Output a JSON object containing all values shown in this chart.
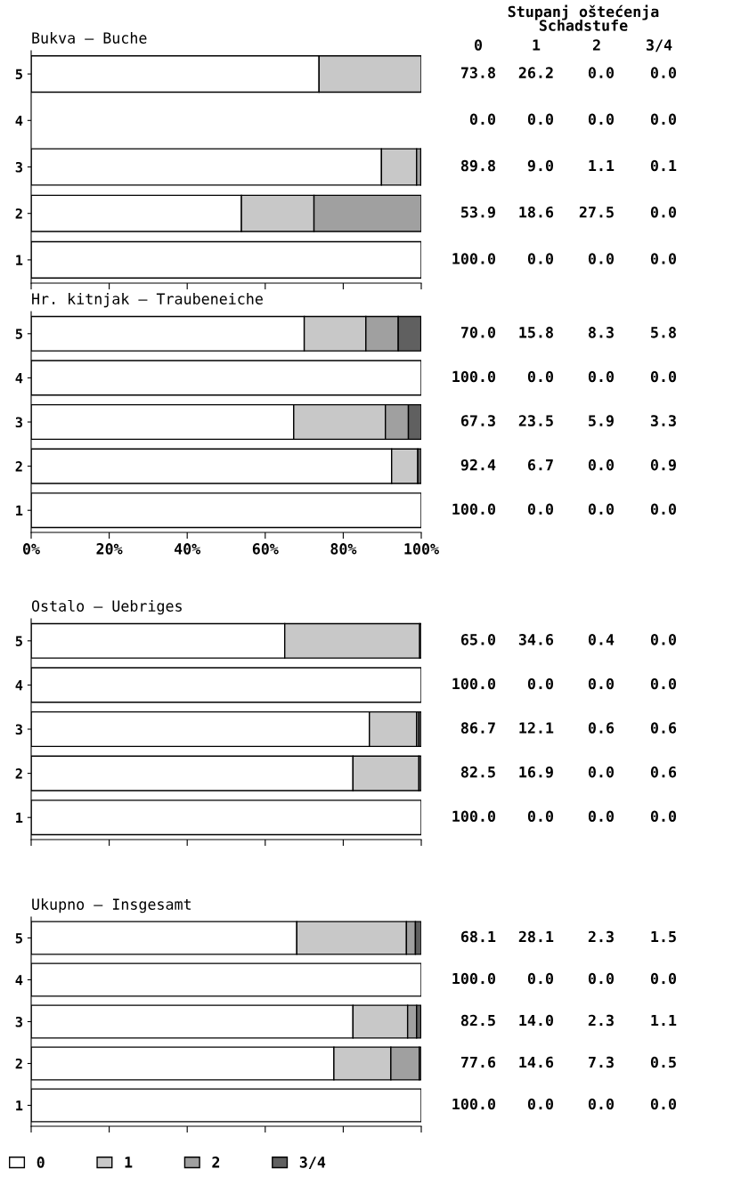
{
  "chart_data": [
    {
      "type": "bar",
      "orientation": "horizontal",
      "stacked": true,
      "title": "Bukva – Buche",
      "annotations": [
        "Stupanj oštećenja",
        "Schadstufe",
        "0",
        "1",
        "2",
        "3/4"
      ],
      "categories": [
        "5",
        "4",
        "3",
        "2",
        "1"
      ],
      "xlim": [
        0,
        100
      ],
      "xticks": [
        {
          "value": 0,
          "label": null
        },
        {
          "value": 20,
          "label": null
        },
        {
          "value": 40,
          "label": null
        },
        {
          "value": 60,
          "label": null
        },
        {
          "value": 80,
          "label": null
        },
        {
          "value": 100,
          "label": null
        }
      ],
      "tick_labels": "y",
      "series": [
        {
          "color": "#ffffff",
          "values": [
            73.8,
            0.0,
            89.8,
            53.9,
            100.0
          ],
          "value_labels": [
            "73.8",
            "0.0",
            "89.8",
            "53.9",
            "100.0"
          ]
        },
        {
          "color": "#c8c8c8",
          "values": [
            26.2,
            0.0,
            9.0,
            18.6,
            0.0
          ],
          "value_labels": [
            "26.2",
            "0.0",
            "9.0",
            "18.6",
            "0.0"
          ]
        },
        {
          "color": "#a0a0a0",
          "values": [
            0.0,
            0.0,
            1.1,
            27.5,
            0.0
          ],
          "value_labels": [
            "0.0",
            "0.0",
            "1.1",
            "27.5",
            "0.0"
          ]
        },
        {
          "color": "#606060",
          "values": [
            0.0,
            0.0,
            0.1,
            0.0,
            0.0
          ],
          "value_labels": [
            "0.0",
            "0.0",
            "0.1",
            "0.0",
            "0.0"
          ]
        }
      ]
    },
    {
      "type": "bar",
      "orientation": "horizontal",
      "stacked": true,
      "title": "Hr. kitnjak – Traubeneiche",
      "categories": [
        "5",
        "4",
        "3",
        "2",
        "1"
      ],
      "xlim": [
        0,
        100
      ],
      "xticks": [
        {
          "value": 0,
          "label": "0%"
        },
        {
          "value": 20,
          "label": "20%"
        },
        {
          "value": 40,
          "label": "40%"
        },
        {
          "value": 60,
          "label": "60%"
        },
        {
          "value": 80,
          "label": "80%"
        },
        {
          "value": 100,
          "label": "100%"
        }
      ],
      "series": [
        {
          "color": "#ffffff",
          "values": [
            70.0,
            100.0,
            67.3,
            92.4,
            100.0
          ],
          "value_labels": [
            "70.0",
            "100.0",
            "67.3",
            "92.4",
            "100.0"
          ]
        },
        {
          "color": "#c8c8c8",
          "values": [
            15.8,
            0.0,
            23.5,
            6.7,
            0.0
          ],
          "value_labels": [
            "15.8",
            "0.0",
            "23.5",
            "6.7",
            "0.0"
          ]
        },
        {
          "color": "#a0a0a0",
          "values": [
            8.3,
            0.0,
            5.9,
            0.0,
            0.0
          ],
          "value_labels": [
            "8.3",
            "0.0",
            "5.9",
            "0.0",
            "0.0"
          ]
        },
        {
          "color": "#606060",
          "values": [
            5.8,
            0.0,
            3.3,
            0.9,
            0.0
          ],
          "value_labels": [
            "5.8",
            "0.0",
            "3.3",
            "0.9",
            "0.0"
          ]
        }
      ]
    },
    {
      "type": "bar",
      "orientation": "horizontal",
      "stacked": true,
      "title": "Ostalo – Uebriges",
      "categories": [
        "5",
        "4",
        "3",
        "2",
        "1"
      ],
      "xlim": [
        0,
        100
      ],
      "xticks": [
        {
          "value": 0,
          "label": null
        },
        {
          "value": 20,
          "label": null
        },
        {
          "value": 40,
          "label": null
        },
        {
          "value": 60,
          "label": null
        },
        {
          "value": 80,
          "label": null
        },
        {
          "value": 100,
          "label": null
        }
      ],
      "tick_labels": "y",
      "series": [
        {
          "color": "#ffffff",
          "values": [
            65.0,
            100.0,
            86.7,
            82.5,
            100.0
          ],
          "value_labels": [
            "65.0",
            "100.0",
            "86.7",
            "82.5",
            "100.0"
          ]
        },
        {
          "color": "#c8c8c8",
          "values": [
            34.6,
            0.0,
            12.1,
            16.9,
            0.0
          ],
          "value_labels": [
            "34.6",
            "0.0",
            "12.1",
            "16.9",
            "0.0"
          ]
        },
        {
          "color": "#a0a0a0",
          "values": [
            0.4,
            0.0,
            0.6,
            0.0,
            0.0
          ],
          "value_labels": [
            "0.4",
            "0.0",
            "0.6",
            "0.0",
            "0.0"
          ]
        },
        {
          "color": "#606060",
          "values": [
            0.0,
            0.0,
            0.6,
            0.6,
            0.0
          ],
          "value_labels": [
            "0.0",
            "0.0",
            "0.6",
            "0.6",
            "0.0"
          ]
        }
      ]
    },
    {
      "type": "bar",
      "orientation": "horizontal",
      "stacked": true,
      "title": "Ukupno – Insgesamt",
      "categories": [
        "5",
        "4",
        "3",
        "2",
        "1"
      ],
      "xlim": [
        0,
        100
      ],
      "xticks": [
        {
          "value": 0,
          "label": null
        },
        {
          "value": 20,
          "label": null
        },
        {
          "value": 40,
          "label": null
        },
        {
          "value": 60,
          "label": null
        },
        {
          "value": 80,
          "label": null
        },
        {
          "value": 100,
          "label": null
        }
      ],
      "tick_labels": "y",
      "legend": "bottom",
      "series": [
        {
          "name": "0",
          "color": "#ffffff",
          "values": [
            68.1,
            100.0,
            82.5,
            77.6,
            100.0
          ],
          "value_labels": [
            "68.1",
            "100.0",
            "82.5",
            "77.6",
            "100.0"
          ]
        },
        {
          "name": "1",
          "color": "#c8c8c8",
          "values": [
            28.1,
            0.0,
            14.0,
            14.6,
            0.0
          ],
          "value_labels": [
            "28.1",
            "0.0",
            "14.0",
            "14.6",
            "0.0"
          ]
        },
        {
          "name": "2",
          "color": "#a0a0a0",
          "values": [
            2.3,
            0.0,
            2.3,
            7.3,
            0.0
          ],
          "value_labels": [
            "2.3",
            "0.0",
            "2.3",
            "7.3",
            "0.0"
          ]
        },
        {
          "name": "3/4",
          "color": "#606060",
          "values": [
            1.5,
            0.0,
            1.1,
            0.5,
            0.0
          ],
          "value_labels": [
            "1.5",
            "0.0",
            "1.1",
            "0.5",
            "0.0"
          ]
        }
      ]
    }
  ]
}
